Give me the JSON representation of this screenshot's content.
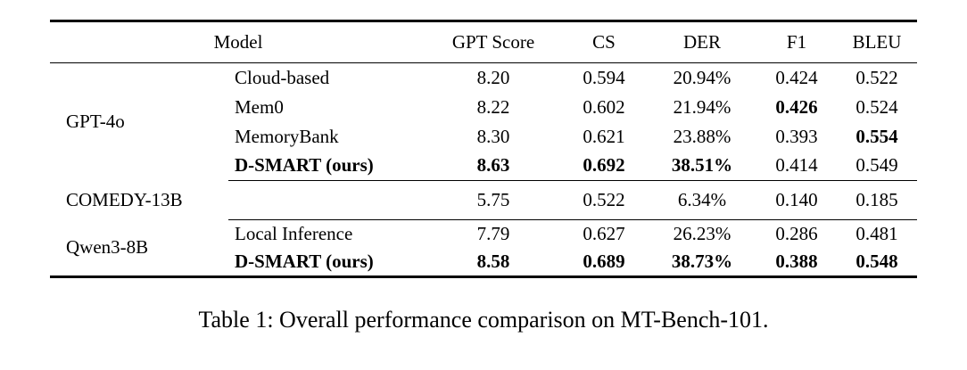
{
  "caption": "Table 1: Overall performance comparison on MT-Bench-101.",
  "header": {
    "model": "Model",
    "gpt_score": "GPT Score",
    "cs": "CS",
    "der": "DER",
    "f1": "F1",
    "bleu": "BLEU"
  },
  "groups": [
    {
      "label": "GPT-4o",
      "rows": [
        {
          "variant": "Cloud-based",
          "gpt": "8.20",
          "cs": "0.594",
          "der": "20.94%",
          "f1": "0.424",
          "bleu": "0.522"
        },
        {
          "variant": "Mem0",
          "gpt": "8.22",
          "cs": "0.602",
          "der": "21.94%",
          "f1": "0.426",
          "bleu": "0.524"
        },
        {
          "variant": "MemoryBank",
          "gpt": "8.30",
          "cs": "0.621",
          "der": "23.88%",
          "f1": "0.393",
          "bleu": "0.554"
        },
        {
          "variant": "D-SMART (ours)",
          "gpt": "8.63",
          "cs": "0.692",
          "der": "38.51%",
          "f1": "0.414",
          "bleu": "0.549"
        }
      ]
    },
    {
      "label": "COMEDY-13B",
      "rows": [
        {
          "variant": "",
          "gpt": "5.75",
          "cs": "0.522",
          "der": "6.34%",
          "f1": "0.140",
          "bleu": "0.185"
        }
      ]
    },
    {
      "label": "Qwen3-8B",
      "rows": [
        {
          "variant": "Local Inference",
          "gpt": "7.79",
          "cs": "0.627",
          "der": "26.23%",
          "f1": "0.286",
          "bleu": "0.481"
        },
        {
          "variant": "D-SMART (ours)",
          "gpt": "8.58",
          "cs": "0.689",
          "der": "38.73%",
          "f1": "0.388",
          "bleu": "0.548"
        }
      ]
    }
  ]
}
